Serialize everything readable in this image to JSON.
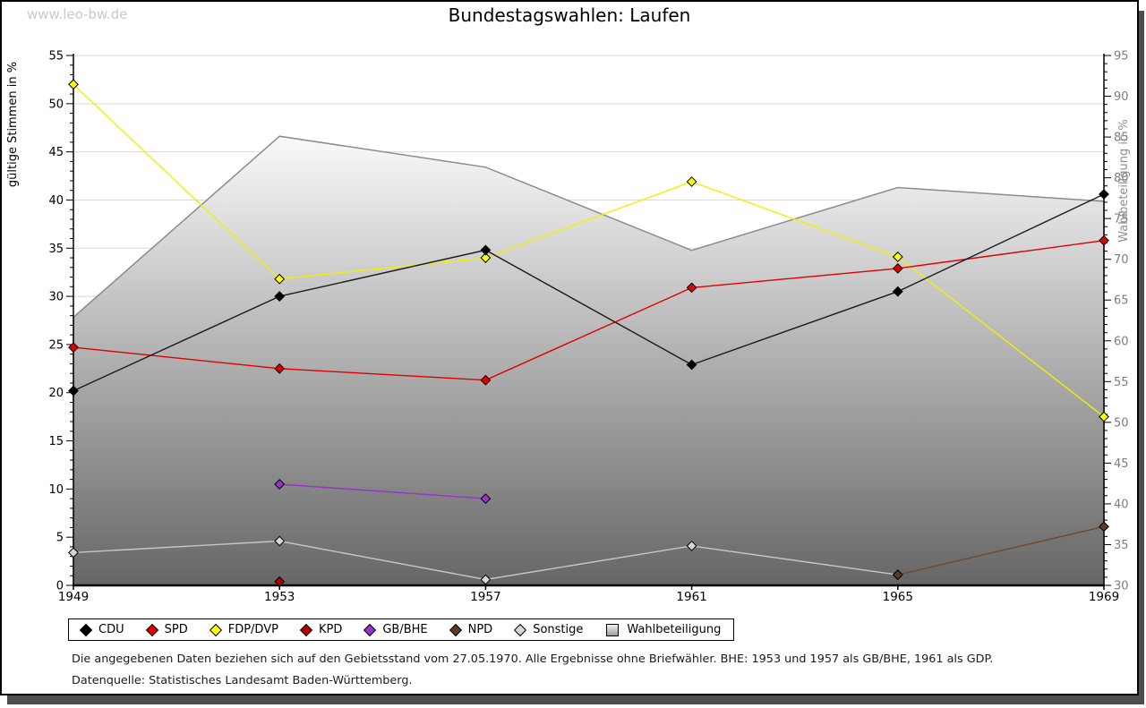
{
  "watermark": "www.leo-bw.de",
  "title": "Bundestagswahlen: Laufen",
  "footnotes": [
    "Die angegebenen Daten beziehen sich auf den Gebietsstand vom 27.05.1970. Alle Ergebnisse ohne Briefwähler. BHE: 1953 und 1957 als GB/BHE, 1961 als GDP.",
    "Datenquelle: Statistisches Landesamt Baden-Württemberg."
  ],
  "chart_data": {
    "type": "line",
    "title": "Bundestagswahlen: Laufen",
    "x": [
      1949,
      1953,
      1957,
      1961,
      1965,
      1969
    ],
    "xticklabels": [
      "1949",
      "1953",
      "1957",
      "1961",
      "1965",
      "1969"
    ],
    "ylabel_left": "gültige Stimmen in %",
    "ylabel_right": "Wahlbeteiligung in %",
    "ylim_left": [
      0,
      55
    ],
    "ylim_right": [
      30,
      95
    ],
    "yticks_left": [
      0,
      5,
      10,
      15,
      20,
      25,
      30,
      35,
      40,
      45,
      50,
      55
    ],
    "yticks_right": [
      30,
      35,
      40,
      45,
      50,
      55,
      60,
      65,
      70,
      75,
      80,
      85,
      90,
      95
    ],
    "ytick_minor_step": 1,
    "grid": true,
    "grid_color": "#d9d9d9",
    "legend_position": "bottom",
    "series": [
      {
        "name": "CDU",
        "color": "#000000",
        "line_color": "#1a1a1a",
        "values": [
          20.2,
          30.0,
          34.8,
          22.9,
          30.5,
          40.6
        ]
      },
      {
        "name": "SPD",
        "color": "#e00000",
        "line_color": "#e00000",
        "values": [
          24.7,
          22.5,
          21.3,
          30.9,
          32.9,
          35.8
        ]
      },
      {
        "name": "FDP/DVP",
        "color": "#ffff00",
        "line_color": "#f0f000",
        "values": [
          52.0,
          31.8,
          34.0,
          41.9,
          34.1,
          17.5
        ]
      },
      {
        "name": "KPD",
        "color": "#b30000",
        "line_color": "#b30000",
        "values": [
          null,
          0.4,
          null,
          null,
          null,
          null
        ]
      },
      {
        "name": "GB/BHE",
        "color": "#9933cc",
        "line_color": "#9933cc",
        "values": [
          null,
          10.5,
          9.0,
          null,
          null,
          null
        ]
      },
      {
        "name": "NPD",
        "color": "#5e3c26",
        "line_color": "#6b4a32",
        "values": [
          null,
          null,
          null,
          null,
          1.1,
          6.1
        ]
      },
      {
        "name": "Sonstige",
        "color": "#d6d6d6",
        "line_color": "#c6c6c6",
        "values": [
          3.4,
          4.6,
          0.6,
          4.1,
          1.1,
          null
        ]
      }
    ],
    "area_series": {
      "name": "Wahlbeteiligung",
      "axis": "right",
      "values": [
        62.9,
        85.1,
        81.3,
        71.1,
        78.8,
        77.1
      ],
      "fill_top": "#fbfbfb",
      "fill_bottom": "#656565",
      "edge_color": "#8c8c8c"
    }
  }
}
